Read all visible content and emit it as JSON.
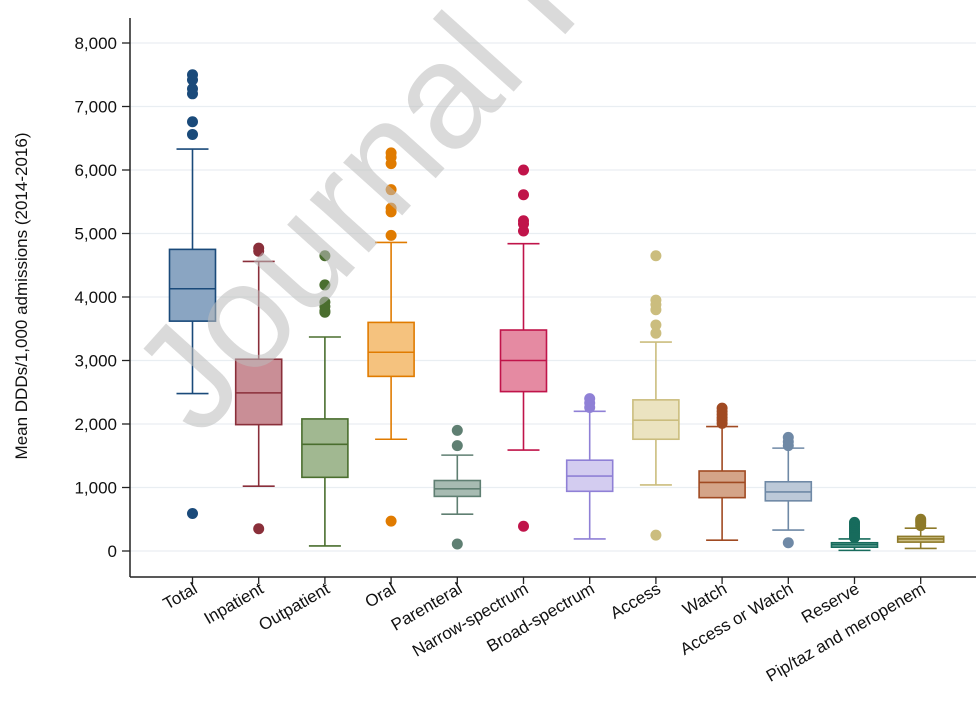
{
  "watermark": "Journal Pre",
  "chart_data": {
    "type": "box",
    "ylabel": "Mean DDDs/1,000 admissions (2014-2016)",
    "xlabel": "",
    "ylim": [
      0,
      8000
    ],
    "yticks": [
      0,
      1000,
      2000,
      3000,
      4000,
      5000,
      6000,
      7000,
      8000
    ],
    "ytick_labels": [
      "0",
      "1,000",
      "2,000",
      "3,000",
      "4,000",
      "5,000",
      "6,000",
      "7,000",
      "8,000"
    ],
    "grid": true,
    "categories": [
      "Total",
      "Inpatient",
      "Outpatient",
      "Oral",
      "Parenteral",
      "Narrow-spectrum",
      "Broad-spectrum",
      "Access",
      "Watch",
      "Access or Watch",
      "Reserve",
      "Pip/taz and meropenem"
    ],
    "boxes": [
      {
        "whisker_low": 2480,
        "q1": 3620,
        "median": 4130,
        "q3": 4750,
        "whisker_high": 6330,
        "outliers": [
          7500,
          7420,
          7280,
          7200,
          6760,
          6560,
          590
        ],
        "color": "#1a4a7a",
        "fill": "#8aa5c2"
      },
      {
        "whisker_low": 1020,
        "q1": 1990,
        "median": 2490,
        "q3": 3020,
        "whisker_high": 4560,
        "outliers": [
          4770,
          4720,
          350
        ],
        "color": "#8a2f3a",
        "fill": "#c98e96"
      },
      {
        "whisker_low": 80,
        "q1": 1160,
        "median": 1680,
        "q3": 2080,
        "whisker_high": 3370,
        "outliers": [
          4650,
          4190,
          3920,
          3850,
          3780,
          3760
        ],
        "color": "#4a6e2e",
        "fill": "#a1b891"
      },
      {
        "whisker_low": 1760,
        "q1": 2750,
        "median": 3130,
        "q3": 3600,
        "whisker_high": 4860,
        "outliers": [
          6270,
          6200,
          6100,
          5690,
          5400,
          5340,
          4970,
          470
        ],
        "color": "#e07b00",
        "fill": "#f5c27e"
      },
      {
        "whisker_low": 580,
        "q1": 860,
        "median": 980,
        "q3": 1110,
        "whisker_high": 1510,
        "outliers": [
          1900,
          1660,
          110
        ],
        "color": "#5f7f72",
        "fill": "#a7bbb2"
      },
      {
        "whisker_low": 1590,
        "q1": 2510,
        "median": 3000,
        "q3": 3480,
        "whisker_high": 4840,
        "outliers": [
          6000,
          5610,
          5200,
          5150,
          5040,
          390
        ],
        "color": "#c0144a",
        "fill": "#e58aa2"
      },
      {
        "whisker_low": 190,
        "q1": 940,
        "median": 1180,
        "q3": 1430,
        "whisker_high": 2200,
        "outliers": [
          2400,
          2330,
          2260
        ],
        "color": "#8f80d6",
        "fill": "#d3ccf0"
      },
      {
        "whisker_low": 1040,
        "q1": 1760,
        "median": 2060,
        "q3": 2380,
        "whisker_high": 3290,
        "outliers": [
          4650,
          3950,
          3880,
          3800,
          3560,
          3430,
          250
        ],
        "color": "#cbbd7e",
        "fill": "#ebe3c0"
      },
      {
        "whisker_low": 170,
        "q1": 840,
        "median": 1080,
        "q3": 1260,
        "whisker_high": 1960,
        "outliers": [
          2250,
          2200,
          2150,
          2100,
          2060,
          2010
        ],
        "color": "#a04a22",
        "fill": "#d4a488"
      },
      {
        "whisker_low": 330,
        "q1": 790,
        "median": 930,
        "q3": 1090,
        "whisker_high": 1620,
        "outliers": [
          1790,
          1720,
          1660,
          130
        ],
        "color": "#6f89a6",
        "fill": "#bcc9d8"
      },
      {
        "whisker_low": 10,
        "q1": 60,
        "median": 100,
        "q3": 130,
        "whisker_high": 190,
        "outliers": [
          450,
          420,
          390,
          360,
          330,
          300,
          270,
          240,
          210
        ],
        "color": "#176b5c",
        "fill": "#7fb2a8"
      },
      {
        "whisker_low": 40,
        "q1": 140,
        "median": 190,
        "q3": 230,
        "whisker_high": 360,
        "outliers": [
          500,
          470,
          440,
          400
        ],
        "color": "#8e7a2a",
        "fill": "#cdbf85"
      }
    ]
  }
}
